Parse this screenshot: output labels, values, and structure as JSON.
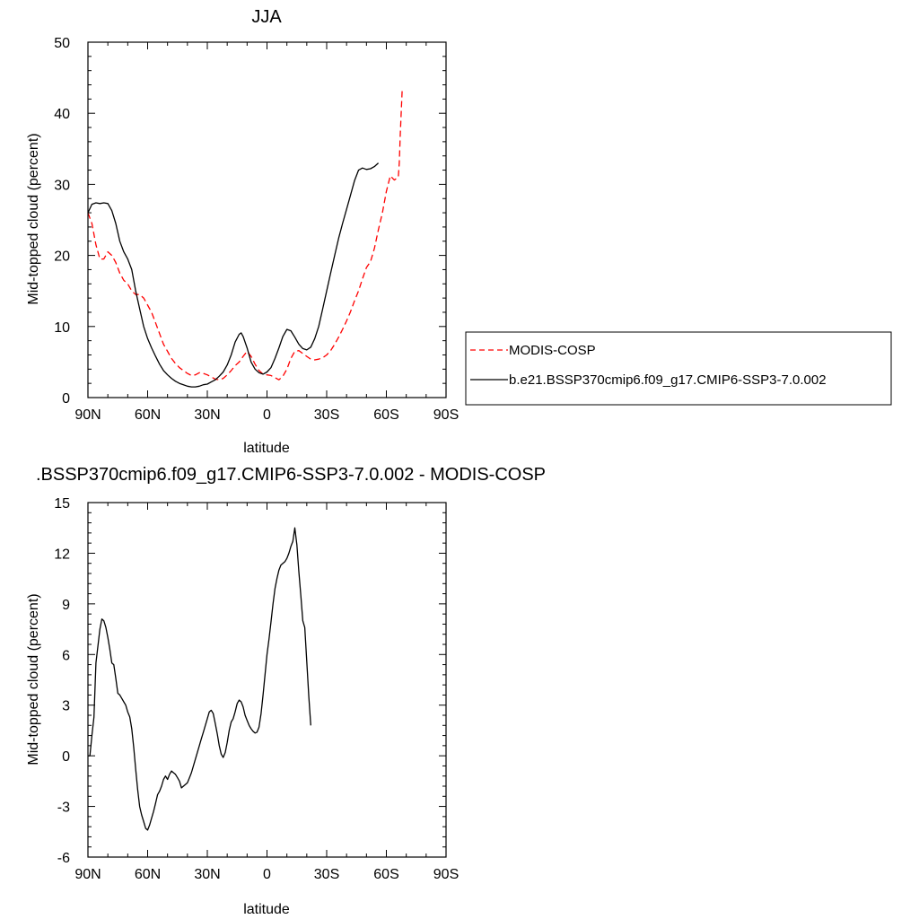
{
  "chart_data": [
    {
      "type": "line",
      "title": "JJA",
      "xlabel": "latitude",
      "ylabel": "Mid-topped cloud (percent)",
      "xlim": [
        90,
        -90
      ],
      "ylim": [
        0,
        50
      ],
      "x_ticks": [
        90,
        60,
        30,
        0,
        -30,
        -60,
        -90
      ],
      "x_tick_labels": [
        "90N",
        "60N",
        "30N",
        "0",
        "30S",
        "60S",
        "90S"
      ],
      "y_ticks": [
        0,
        10,
        20,
        30,
        40,
        50
      ],
      "y_tick_labels": [
        "0",
        "10",
        "20",
        "30",
        "40",
        "50"
      ],
      "legend_position": "right",
      "series": [
        {
          "name": "MODIS-COSP",
          "color": "#ff0000",
          "style": "dashed",
          "points": [
            [
              90,
              26
            ],
            [
              88,
              24.5
            ],
            [
              86,
              21.5
            ],
            [
              84,
              19.5
            ],
            [
              82,
              19.5
            ],
            [
              80,
              20.5
            ],
            [
              78,
              20
            ],
            [
              76,
              19
            ],
            [
              74,
              17.5
            ],
            [
              72,
              16.5
            ],
            [
              70,
              16
            ],
            [
              68,
              15
            ],
            [
              66,
              14.5
            ],
            [
              64,
              14.5
            ],
            [
              62,
              14
            ],
            [
              60,
              13
            ],
            [
              58,
              12
            ],
            [
              56,
              10.5
            ],
            [
              54,
              9
            ],
            [
              52,
              7.5
            ],
            [
              50,
              6.5
            ],
            [
              48,
              5.5
            ],
            [
              46,
              4.8
            ],
            [
              44,
              4.2
            ],
            [
              42,
              3.8
            ],
            [
              40,
              3.4
            ],
            [
              38,
              3.1
            ],
            [
              36,
              3.2
            ],
            [
              34,
              3.5
            ],
            [
              32,
              3.4
            ],
            [
              30,
              3.2
            ],
            [
              28,
              2.9
            ],
            [
              26,
              2.6
            ],
            [
              24,
              2.5
            ],
            [
              22,
              2.7
            ],
            [
              20,
              3.2
            ],
            [
              18,
              3.8
            ],
            [
              16,
              4.5
            ],
            [
              14,
              5
            ],
            [
              12,
              5.8
            ],
            [
              10,
              6.5
            ],
            [
              8,
              5.8
            ],
            [
              6,
              4.7
            ],
            [
              4,
              3.8
            ],
            [
              2,
              3.3
            ],
            [
              0,
              3.2
            ],
            [
              -2,
              3.1
            ],
            [
              -4,
              2.8
            ],
            [
              -6,
              2.5
            ],
            [
              -8,
              3
            ],
            [
              -10,
              4
            ],
            [
              -12,
              5.5
            ],
            [
              -14,
              6.5
            ],
            [
              -16,
              6.6
            ],
            [
              -18,
              6.2
            ],
            [
              -20,
              5.8
            ],
            [
              -22,
              5.4
            ],
            [
              -24,
              5.3
            ],
            [
              -26,
              5.4
            ],
            [
              -28,
              5.6
            ],
            [
              -30,
              6
            ],
            [
              -32,
              6.6
            ],
            [
              -34,
              7.5
            ],
            [
              -36,
              8.5
            ],
            [
              -38,
              9.6
            ],
            [
              -40,
              10.8
            ],
            [
              -42,
              12.1
            ],
            [
              -44,
              13.6
            ],
            [
              -46,
              15
            ],
            [
              -48,
              16.7
            ],
            [
              -50,
              18.3
            ],
            [
              -52,
              19.1
            ],
            [
              -54,
              21
            ],
            [
              -56,
              23.6
            ],
            [
              -58,
              26
            ],
            [
              -60,
              29
            ],
            [
              -62,
              31.2
            ],
            [
              -64,
              30.6
            ],
            [
              -66,
              31
            ],
            [
              -66.5,
              33
            ],
            [
              -67,
              37
            ],
            [
              -68,
              43.5
            ]
          ]
        },
        {
          "name": "b.e21.BSSP370cmip6.f09_g17.CMIP6-SSP3-7.0.002",
          "color": "#000000",
          "style": "solid",
          "points": [
            [
              90,
              26
            ],
            [
              88,
              27.2
            ],
            [
              86,
              27.4
            ],
            [
              84,
              27.3
            ],
            [
              82,
              27.4
            ],
            [
              80,
              27.3
            ],
            [
              78,
              26.3
            ],
            [
              76,
              24.5
            ],
            [
              74,
              22
            ],
            [
              72,
              20.5
            ],
            [
              70,
              19.5
            ],
            [
              68,
              18
            ],
            [
              66,
              15
            ],
            [
              64,
              12.5
            ],
            [
              62,
              10
            ],
            [
              60,
              8.3
            ],
            [
              58,
              7
            ],
            [
              56,
              5.8
            ],
            [
              54,
              4.7
            ],
            [
              52,
              3.8
            ],
            [
              50,
              3.2
            ],
            [
              48,
              2.7
            ],
            [
              46,
              2.3
            ],
            [
              44,
              2
            ],
            [
              42,
              1.8
            ],
            [
              40,
              1.6
            ],
            [
              38,
              1.5
            ],
            [
              36,
              1.5
            ],
            [
              34,
              1.6
            ],
            [
              32,
              1.8
            ],
            [
              30,
              1.9
            ],
            [
              28,
              2.2
            ],
            [
              26,
              2.5
            ],
            [
              24,
              3
            ],
            [
              22,
              3.6
            ],
            [
              20,
              4.6
            ],
            [
              18,
              6
            ],
            [
              16,
              7.8
            ],
            [
              14,
              8.9
            ],
            [
              13,
              9.1
            ],
            [
              12,
              8.6
            ],
            [
              10,
              7
            ],
            [
              8,
              5
            ],
            [
              6,
              4
            ],
            [
              4,
              3.5
            ],
            [
              2,
              3.3
            ],
            [
              0,
              3.6
            ],
            [
              -2,
              4.2
            ],
            [
              -4,
              5.5
            ],
            [
              -6,
              7
            ],
            [
              -8,
              8.6
            ],
            [
              -10,
              9.6
            ],
            [
              -12,
              9.4
            ],
            [
              -14,
              8.5
            ],
            [
              -16,
              7.5
            ],
            [
              -18,
              6.9
            ],
            [
              -20,
              6.7
            ],
            [
              -22,
              7.1
            ],
            [
              -24,
              8.3
            ],
            [
              -26,
              10
            ],
            [
              -28,
              12.5
            ],
            [
              -30,
              15
            ],
            [
              -32,
              17.5
            ],
            [
              -34,
              20
            ],
            [
              -36,
              22.4
            ],
            [
              -38,
              24.5
            ],
            [
              -40,
              26.5
            ],
            [
              -42,
              28.5
            ],
            [
              -44,
              30.5
            ],
            [
              -46,
              32
            ],
            [
              -48,
              32.3
            ],
            [
              -50,
              32.1
            ],
            [
              -52,
              32.2
            ],
            [
              -54,
              32.5
            ],
            [
              -56,
              33
            ]
          ]
        }
      ]
    },
    {
      "type": "line",
      "title": ".BSSP370cmip6.f09_g17.CMIP6-SSP3-7.0.002 - MODIS-COSP",
      "xlabel": "latitude",
      "ylabel": "Mid-topped cloud (percent)",
      "xlim": [
        90,
        -90
      ],
      "ylim": [
        -6,
        15
      ],
      "x_ticks": [
        90,
        60,
        30,
        0,
        -30,
        -60,
        -90
      ],
      "x_tick_labels": [
        "90N",
        "60N",
        "30N",
        "0",
        "30S",
        "60S",
        "90S"
      ],
      "y_ticks": [
        -6,
        -3,
        0,
        3,
        6,
        9,
        12,
        15
      ],
      "y_tick_labels": [
        "-6",
        "-3",
        "0",
        "3",
        "6",
        "9",
        "12",
        "15"
      ],
      "series": [
        {
          "color": "#000000",
          "style": "solid",
          "points": [
            [
              90,
              0
            ],
            [
              89,
              0
            ],
            [
              88,
              1.2
            ],
            [
              87,
              2.3
            ],
            [
              86,
              5.5
            ],
            [
              85,
              6.5
            ],
            [
              84,
              7.5
            ],
            [
              83,
              8.1
            ],
            [
              82,
              8
            ],
            [
              81,
              7.6
            ],
            [
              80,
              7
            ],
            [
              79,
              6.3
            ],
            [
              78,
              5.5
            ],
            [
              77,
              5.4
            ],
            [
              76,
              4.6
            ],
            [
              75,
              3.7
            ],
            [
              74,
              3.6
            ],
            [
              73,
              3.4
            ],
            [
              72,
              3.2
            ],
            [
              71,
              3
            ],
            [
              70,
              2.6
            ],
            [
              69,
              2.3
            ],
            [
              68,
              1.6
            ],
            [
              67,
              0.5
            ],
            [
              66,
              -0.8
            ],
            [
              65,
              -2
            ],
            [
              64,
              -3
            ],
            [
              63,
              -3.5
            ],
            [
              62,
              -3.9
            ],
            [
              61,
              -4.3
            ],
            [
              60,
              -4.4
            ],
            [
              59,
              -4.1
            ],
            [
              58,
              -3.7
            ],
            [
              57,
              -3.3
            ],
            [
              56,
              -2.8
            ],
            [
              55,
              -2.3
            ],
            [
              54,
              -2.1
            ],
            [
              53,
              -1.8
            ],
            [
              52,
              -1.4
            ],
            [
              51,
              -1.2
            ],
            [
              50,
              -1.4
            ],
            [
              49,
              -1.1
            ],
            [
              48,
              -0.9
            ],
            [
              47,
              -1
            ],
            [
              46,
              -1.1
            ],
            [
              45,
              -1.3
            ],
            [
              44,
              -1.5
            ],
            [
              43,
              -1.9
            ],
            [
              42,
              -1.8
            ],
            [
              41,
              -1.7
            ],
            [
              40,
              -1.6
            ],
            [
              39,
              -1.3
            ],
            [
              38,
              -1
            ],
            [
              37,
              -0.6
            ],
            [
              36,
              -0.2
            ],
            [
              35,
              0.2
            ],
            [
              34,
              0.6
            ],
            [
              33,
              1
            ],
            [
              32,
              1.4
            ],
            [
              31,
              1.8
            ],
            [
              30,
              2.2
            ],
            [
              29,
              2.6
            ],
            [
              28,
              2.7
            ],
            [
              27,
              2.5
            ],
            [
              26,
              1.9
            ],
            [
              25,
              1.3
            ],
            [
              24,
              0.6
            ],
            [
              23,
              0.1
            ],
            [
              22,
              -0.1
            ],
            [
              21,
              0.2
            ],
            [
              20,
              0.8
            ],
            [
              19,
              1.5
            ],
            [
              18,
              2
            ],
            [
              17,
              2.2
            ],
            [
              16,
              2.6
            ],
            [
              15,
              3.1
            ],
            [
              14,
              3.3
            ],
            [
              13,
              3.2
            ],
            [
              12,
              2.9
            ],
            [
              11,
              2.4
            ],
            [
              10,
              2.1
            ],
            [
              9,
              1.8
            ],
            [
              8,
              1.6
            ],
            [
              7,
              1.45
            ],
            [
              6,
              1.35
            ],
            [
              5,
              1.4
            ],
            [
              4,
              1.7
            ],
            [
              3,
              2.5
            ],
            [
              2,
              3.6
            ],
            [
              1,
              4.8
            ],
            [
              0,
              6
            ],
            [
              -1,
              6.9
            ],
            [
              -2,
              7.9
            ],
            [
              -3,
              9
            ],
            [
              -4,
              9.9
            ],
            [
              -5,
              10.5
            ],
            [
              -6,
              11
            ],
            [
              -7,
              11.3
            ],
            [
              -8,
              11.4
            ],
            [
              -9,
              11.5
            ],
            [
              -10,
              11.7
            ],
            [
              -11,
              12
            ],
            [
              -12,
              12.4
            ],
            [
              -13,
              12.7
            ],
            [
              -14,
              13.5
            ],
            [
              -15,
              12.5
            ],
            [
              -16,
              10.9
            ],
            [
              -17,
              9.5
            ],
            [
              -18,
              8
            ],
            [
              -19,
              7.6
            ],
            [
              -20,
              5.6
            ],
            [
              -21,
              3.5
            ],
            [
              -22,
              1.8
            ]
          ]
        }
      ]
    }
  ]
}
